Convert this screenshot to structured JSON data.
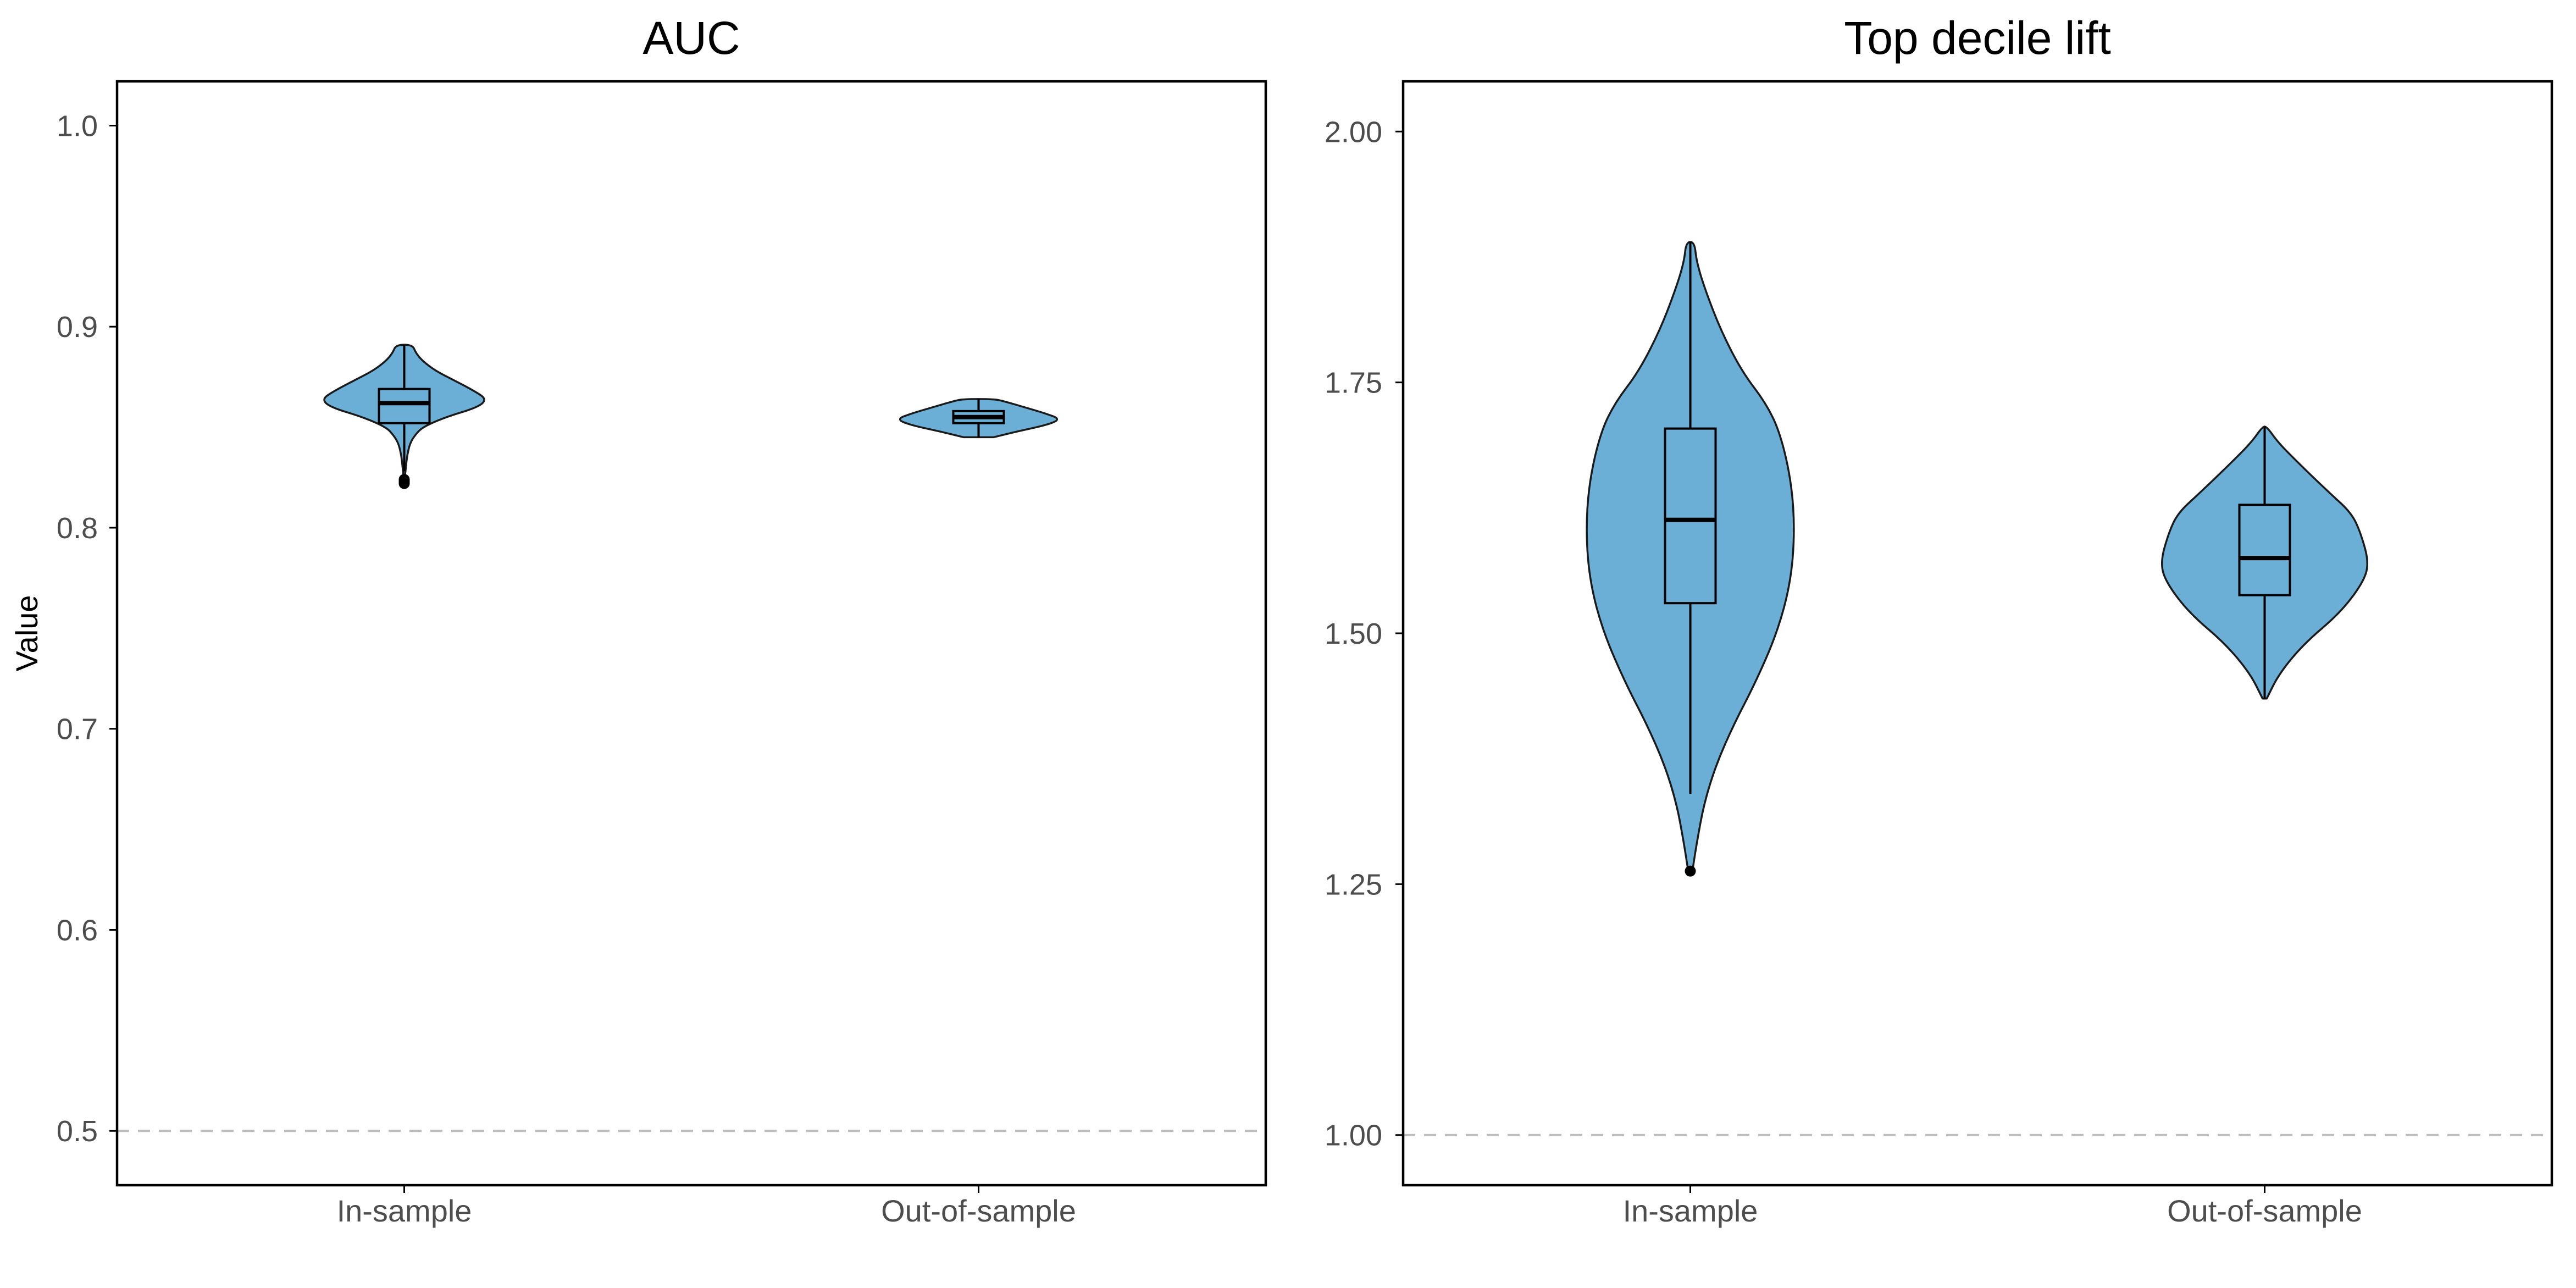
{
  "colors": {
    "violin_fill": "#6baed6",
    "violin_stroke": "#1a1a1a",
    "reference_line": "#bdbdbd",
    "axis": "#000000",
    "tick_label": "#4d4d4d"
  },
  "chart_data": [
    {
      "type": "violin",
      "title": "AUC",
      "xlabel": "",
      "ylabel": "Value",
      "categories": [
        "In-sample",
        "Out-of-sample"
      ],
      "ylim": [
        0.473,
        1.022
      ],
      "yticks": [
        0.5,
        0.6,
        0.7,
        0.8,
        0.9,
        1.0
      ],
      "ytick_labels": [
        "0.5",
        "0.6",
        "0.7",
        "0.8",
        "0.9",
        "1.0"
      ],
      "reference_line": 0.5,
      "grid": false,
      "series": [
        {
          "category": "In-sample",
          "min": 0.828,
          "q1": 0.852,
          "median": 0.862,
          "q3": 0.869,
          "max": 0.891,
          "outliers": [
            0.822,
            0.823,
            0.824
          ],
          "density": [
            [
              0.824,
              0.004
            ],
            [
              0.83,
              0.02
            ],
            [
              0.836,
              0.035
            ],
            [
              0.842,
              0.07
            ],
            [
              0.846,
              0.13
            ],
            [
              0.85,
              0.22
            ],
            [
              0.855,
              0.5
            ],
            [
              0.86,
              0.9
            ],
            [
              0.864,
              1.0
            ],
            [
              0.868,
              0.85
            ],
            [
              0.873,
              0.62
            ],
            [
              0.878,
              0.38
            ],
            [
              0.883,
              0.22
            ],
            [
              0.887,
              0.14
            ],
            [
              0.891,
              0.1
            ]
          ]
        },
        {
          "category": "Out-of-sample",
          "min": 0.845,
          "q1": 0.852,
          "median": 0.855,
          "q3": 0.858,
          "max": 0.864,
          "outliers": [],
          "density": [
            [
              0.845,
              0.18
            ],
            [
              0.848,
              0.48
            ],
            [
              0.851,
              0.82
            ],
            [
              0.854,
              1.0
            ],
            [
              0.857,
              0.8
            ],
            [
              0.86,
              0.55
            ],
            [
              0.863,
              0.3
            ],
            [
              0.864,
              0.18
            ]
          ]
        }
      ]
    },
    {
      "type": "violin",
      "title": "Top decile lift",
      "xlabel": "",
      "ylabel": "",
      "categories": [
        "In-sample",
        "Out-of-sample"
      ],
      "ylim": [
        0.95,
        2.05
      ],
      "yticks": [
        1.0,
        1.25,
        1.5,
        1.75,
        2.0
      ],
      "ytick_labels": [
        "1.00",
        "1.25",
        "1.50",
        "1.75",
        "2.00"
      ],
      "reference_line": 1.0,
      "grid": false,
      "series": [
        {
          "category": "In-sample",
          "min": 1.34,
          "q1": 1.53,
          "median": 1.613,
          "q3": 1.704,
          "max": 1.89,
          "outliers": [
            1.263
          ],
          "density": [
            [
              1.263,
              0.02
            ],
            [
              1.29,
              0.06
            ],
            [
              1.33,
              0.13
            ],
            [
              1.37,
              0.25
            ],
            [
              1.41,
              0.42
            ],
            [
              1.45,
              0.62
            ],
            [
              1.5,
              0.83
            ],
            [
              1.55,
              0.96
            ],
            [
              1.6,
              1.0
            ],
            [
              1.65,
              0.97
            ],
            [
              1.7,
              0.86
            ],
            [
              1.73,
              0.72
            ],
            [
              1.76,
              0.5
            ],
            [
              1.8,
              0.3
            ],
            [
              1.84,
              0.15
            ],
            [
              1.87,
              0.06
            ],
            [
              1.89,
              0.04
            ]
          ]
        },
        {
          "category": "Out-of-sample",
          "min": 1.435,
          "q1": 1.538,
          "median": 1.575,
          "q3": 1.628,
          "max": 1.706,
          "outliers": [],
          "density": [
            [
              1.435,
              0.02
            ],
            [
              1.46,
              0.14
            ],
            [
              1.49,
              0.38
            ],
            [
              1.52,
              0.72
            ],
            [
              1.55,
              0.94
            ],
            [
              1.57,
              1.0
            ],
            [
              1.6,
              0.92
            ],
            [
              1.62,
              0.83
            ],
            [
              1.64,
              0.62
            ],
            [
              1.67,
              0.32
            ],
            [
              1.69,
              0.13
            ],
            [
              1.706,
              0.02
            ]
          ]
        }
      ]
    }
  ]
}
